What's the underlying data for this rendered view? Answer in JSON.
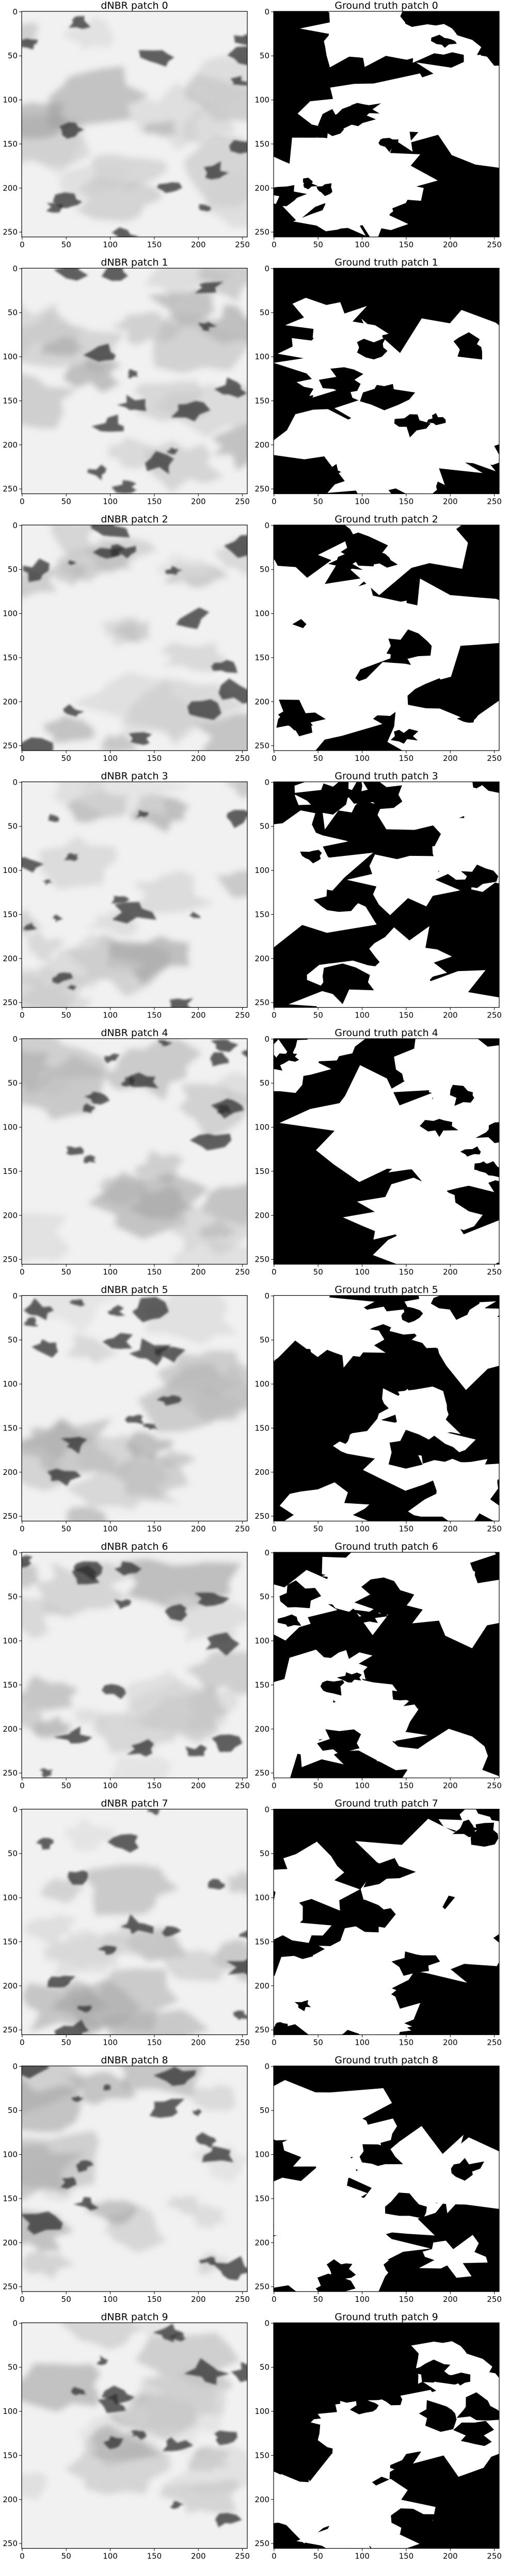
{
  "panels": [
    {
      "left_title": "dNBR patch 0",
      "right_title": "Ground truth patch 0"
    },
    {
      "left_title": "dNBR patch 1",
      "right_title": "Ground truth patch 1"
    },
    {
      "left_title": "dNBR patch 2",
      "right_title": "Ground truth patch 2"
    },
    {
      "left_title": "dNBR patch 3",
      "right_title": "Ground truth patch 3"
    },
    {
      "left_title": "dNBR patch 4",
      "right_title": "Ground truth patch 4"
    },
    {
      "left_title": "dNBR patch 5",
      "right_title": "Ground truth patch 5"
    },
    {
      "left_title": "dNBR patch 6",
      "right_title": "Ground truth patch 6"
    },
    {
      "left_title": "dNBR patch 7",
      "right_title": "Ground truth patch 7"
    },
    {
      "left_title": "dNBR patch 8",
      "right_title": "Ground truth patch 8"
    },
    {
      "left_title": "dNBR patch 9",
      "right_title": "Ground truth patch 9"
    }
  ],
  "axis_ticks": [
    "0",
    "50",
    "100",
    "150",
    "200",
    "250"
  ],
  "colors": {
    "dnbr_background": "#f1f1f1",
    "dnbr_dark": "#2b2b2b",
    "ground_truth_burned": "#ffffff",
    "ground_truth_unburned": "#000000"
  }
}
